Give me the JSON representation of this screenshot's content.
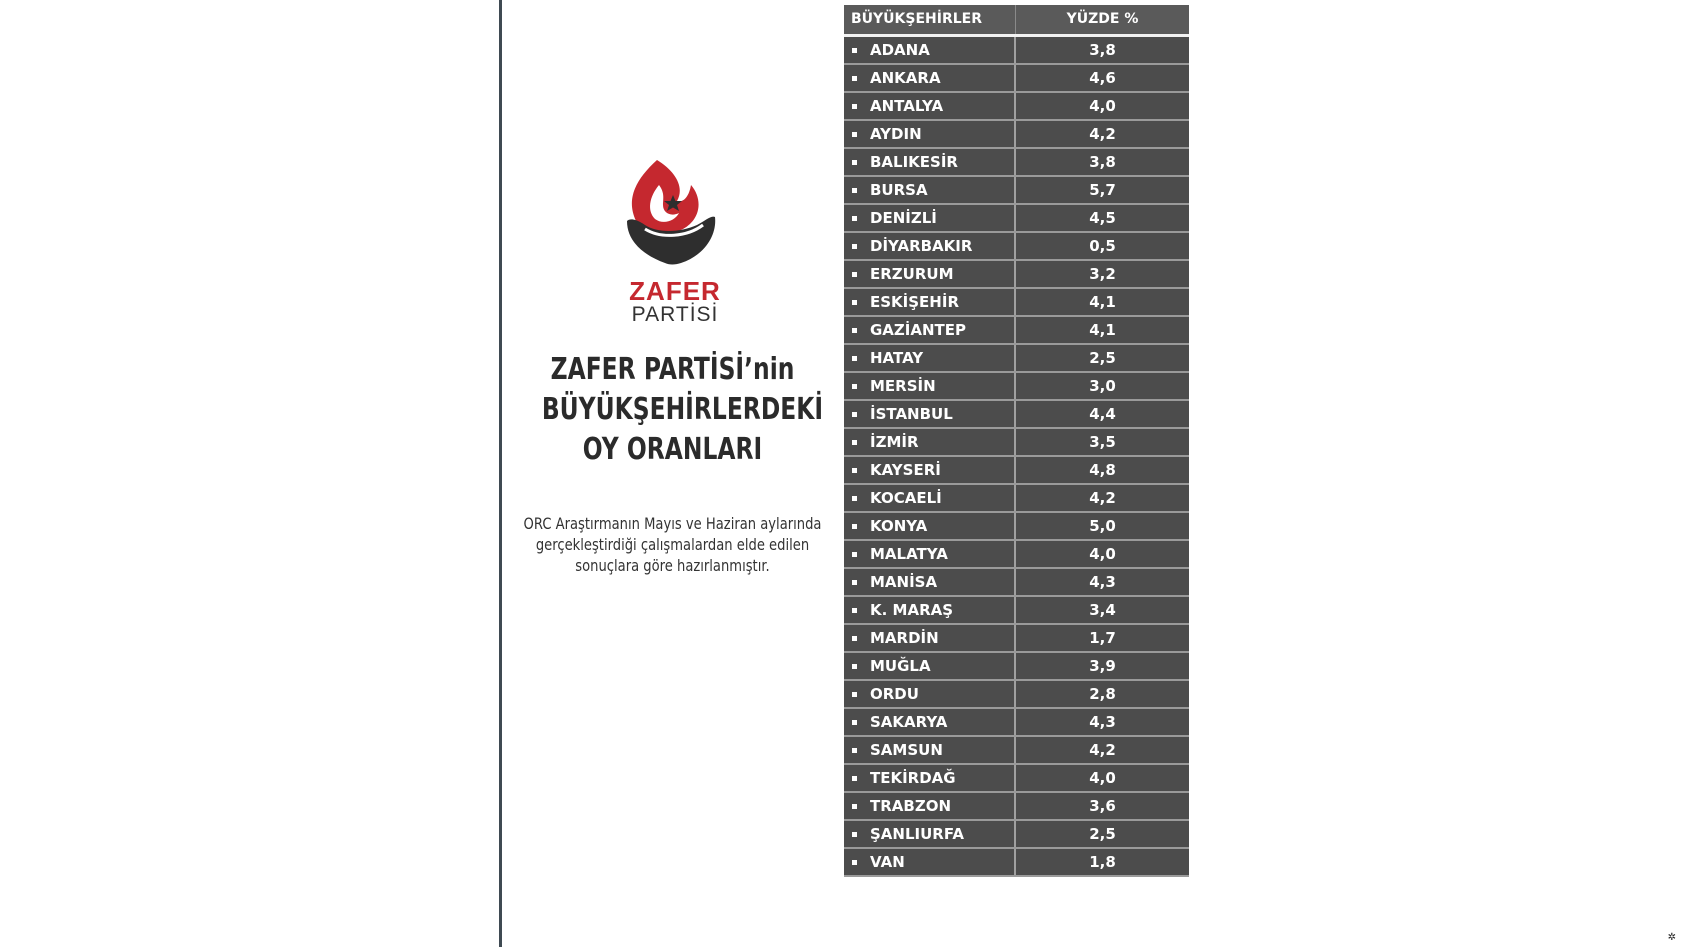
{
  "logo": {
    "name_line1": "ZAFER",
    "name_line2": "PARTİSİ",
    "brand_red": "#c5282f",
    "brand_dark": "#2e2e2e"
  },
  "headline": {
    "line1": "ZAFER PARTİSİ’nin",
    "line2": "BÜYÜKŞEHİRLERDEKİ",
    "line3": "OY ORANLARI"
  },
  "description": {
    "line1": "ORC Araştırmanın Mayıs ve Haziran aylarında",
    "line2": "gerçekleştirdiği çalışmalardan elde edilen",
    "line3": "sonuçlara göre hazırlanmıştır."
  },
  "table": {
    "columns": [
      "BÜYÜKŞEHİRLER",
      "YÜZDE %"
    ],
    "rows": [
      {
        "city": "ADANA",
        "pct": "3,8"
      },
      {
        "city": "ANKARA",
        "pct": "4,6"
      },
      {
        "city": "ANTALYA",
        "pct": "4,0"
      },
      {
        "city": "AYDIN",
        "pct": "4,2"
      },
      {
        "city": "BALIKESİR",
        "pct": "3,8"
      },
      {
        "city": "BURSA",
        "pct": "5,7"
      },
      {
        "city": "DENİZLİ",
        "pct": "4,5"
      },
      {
        "city": "DİYARBAKIR",
        "pct": "0,5"
      },
      {
        "city": "ERZURUM",
        "pct": "3,2"
      },
      {
        "city": "ESKİŞEHİR",
        "pct": "4,1"
      },
      {
        "city": "GAZİANTEP",
        "pct": "4,1"
      },
      {
        "city": "HATAY",
        "pct": "2,5"
      },
      {
        "city": "MERSİN",
        "pct": "3,0"
      },
      {
        "city": "İSTANBUL",
        "pct": "4,4"
      },
      {
        "city": "İZMİR",
        "pct": "3,5"
      },
      {
        "city": "KAYSERİ",
        "pct": "4,8"
      },
      {
        "city": "KOCAELİ",
        "pct": "4,2"
      },
      {
        "city": "KONYA",
        "pct": "5,0"
      },
      {
        "city": "MALATYA",
        "pct": "4,0"
      },
      {
        "city": "MANİSA",
        "pct": "4,3"
      },
      {
        "city": "K. MARAŞ",
        "pct": "3,4"
      },
      {
        "city": "MARDİN",
        "pct": "1,7"
      },
      {
        "city": "MUĞLA",
        "pct": "3,9"
      },
      {
        "city": "ORDU",
        "pct": "2,8"
      },
      {
        "city": "SAKARYA",
        "pct": "4,3"
      },
      {
        "city": "SAMSUN",
        "pct": "4,2"
      },
      {
        "city": "TEKİRDAĞ",
        "pct": "4,0"
      },
      {
        "city": "TRABZON",
        "pct": "3,6"
      },
      {
        "city": "ŞANLIURFA",
        "pct": "2,5"
      },
      {
        "city": "VAN",
        "pct": "1,8"
      }
    ],
    "colors": {
      "header_bg": "#5a5a5a",
      "row_bg": "#4c4c4c",
      "text": "#ffffff"
    }
  },
  "corner_icon": "gear-icon"
}
